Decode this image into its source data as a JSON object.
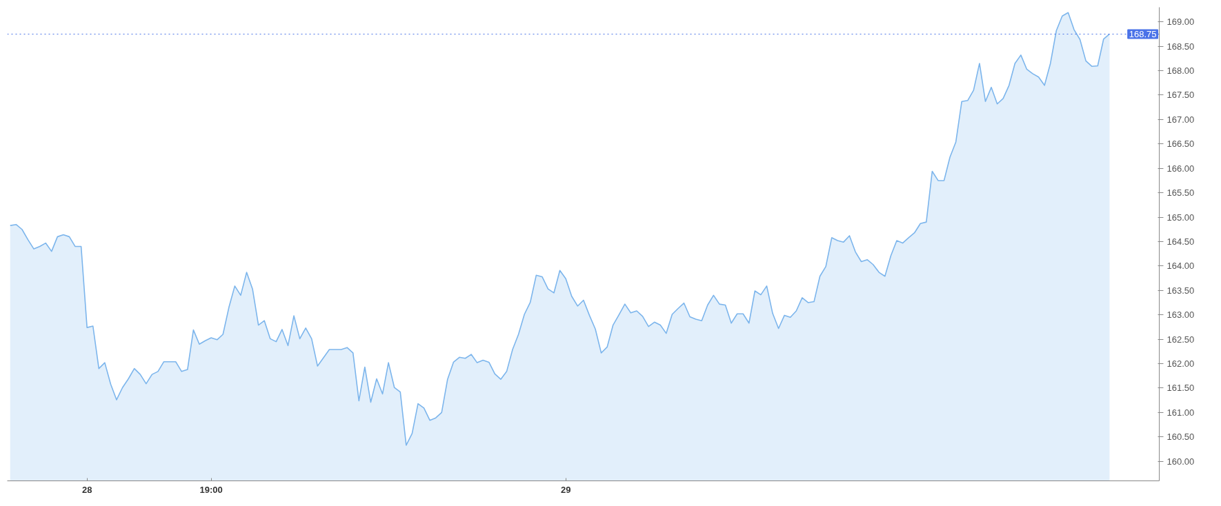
{
  "chart_data": {
    "type": "area",
    "categories": [
      null,
      null,
      null,
      null,
      null,
      null,
      null,
      null,
      null,
      null,
      null,
      null,
      null,
      "28",
      null,
      null,
      null,
      null,
      null,
      null,
      null,
      null,
      null,
      null,
      null,
      null,
      null,
      null,
      null,
      null,
      null,
      null,
      null,
      null,
      "19:00",
      null,
      null,
      null,
      null,
      null,
      null,
      null,
      null,
      null,
      null,
      null,
      null,
      null,
      null,
      null,
      null,
      null,
      null,
      null,
      null,
      null,
      null,
      null,
      null,
      null,
      null,
      null,
      null,
      null,
      null,
      null,
      null,
      null,
      null,
      null,
      null,
      null,
      null,
      null,
      null,
      null,
      null,
      null,
      null,
      null,
      null,
      null,
      null,
      null,
      null,
      null,
      null,
      null,
      null,
      null,
      null,
      null,
      null,
      null,
      "29",
      null,
      null,
      null,
      null,
      null,
      null,
      null,
      null,
      null,
      null,
      null,
      null,
      null,
      null,
      null,
      null,
      null,
      null,
      null,
      null,
      null,
      null,
      null,
      null,
      null,
      null,
      null,
      null,
      null,
      null,
      null,
      null,
      null,
      null,
      null,
      null,
      null,
      null,
      null,
      null,
      null,
      null,
      null,
      null,
      null,
      null,
      null,
      null,
      null,
      null,
      null,
      null,
      null,
      null,
      null,
      null,
      null,
      null,
      null,
      null,
      null,
      null,
      null,
      null,
      null,
      null,
      null,
      null,
      null,
      null,
      null,
      null,
      null,
      null,
      null,
      null,
      null,
      null,
      null,
      null,
      null,
      null,
      null,
      null,
      null,
      null,
      null,
      null,
      null,
      null,
      null,
      null
    ],
    "series": [
      {
        "color": "#7cb5ec",
        "values": [
          164.83,
          164.85,
          164.75,
          164.54,
          164.35,
          164.4,
          164.47,
          164.3,
          164.6,
          164.64,
          164.6,
          164.4,
          164.4,
          162.74,
          162.77,
          161.9,
          162.02,
          161.58,
          161.26,
          161.51,
          161.69,
          161.9,
          161.78,
          161.59,
          161.78,
          161.84,
          162.04,
          162.04,
          162.04,
          161.84,
          161.88,
          162.69,
          162.4,
          162.47,
          162.53,
          162.49,
          162.6,
          163.15,
          163.59,
          163.4,
          163.87,
          163.53,
          162.79,
          162.88,
          162.51,
          162.45,
          162.7,
          162.37,
          162.98,
          162.51,
          162.73,
          162.51,
          161.95,
          162.12,
          162.29,
          162.29,
          162.29,
          162.33,
          162.22,
          161.24,
          161.93,
          161.21,
          161.69,
          161.38,
          162.02,
          161.51,
          161.42,
          160.33,
          160.57,
          161.18,
          161.09,
          160.84,
          160.89,
          161.0,
          161.68,
          162.03,
          162.13,
          162.11,
          162.19,
          162.02,
          162.07,
          162.03,
          161.79,
          161.68,
          161.84,
          162.29,
          162.6,
          163.01,
          163.26,
          163.81,
          163.78,
          163.53,
          163.45,
          163.91,
          163.74,
          163.38,
          163.18,
          163.3,
          162.99,
          162.71,
          162.22,
          162.34,
          162.79,
          163.0,
          163.22,
          163.04,
          163.08,
          162.97,
          162.76,
          162.85,
          162.79,
          162.62,
          163.01,
          163.13,
          163.24,
          162.96,
          162.91,
          162.88,
          163.2,
          163.4,
          163.22,
          163.2,
          162.83,
          163.02,
          163.02,
          162.83,
          163.49,
          163.41,
          163.59,
          163.03,
          162.72,
          162.99,
          162.95,
          163.08,
          163.35,
          163.25,
          163.27,
          163.79,
          163.99,
          164.58,
          164.52,
          164.49,
          164.62,
          164.29,
          164.09,
          164.13,
          164.03,
          163.87,
          163.79,
          164.21,
          164.52,
          164.47,
          164.58,
          164.68,
          164.87,
          164.9,
          165.94,
          165.75,
          165.75,
          166.23,
          166.54,
          167.37,
          167.39,
          167.6,
          168.15,
          167.37,
          167.66,
          167.32,
          167.43,
          167.7,
          168.15,
          168.32,
          168.03,
          167.94,
          167.87,
          167.7,
          168.15,
          168.82,
          169.12,
          169.19,
          168.84,
          168.64,
          168.2,
          168.09,
          168.1,
          168.65,
          168.75
        ]
      }
    ],
    "ylim": [
      159.6,
      169.3
    ],
    "yticks": [
      {
        "value": 160,
        "label": "160.00"
      },
      {
        "value": 160.5,
        "label": "160.50"
      },
      {
        "value": 161,
        "label": "161.00"
      },
      {
        "value": 161.5,
        "label": "161.50"
      },
      {
        "value": 162,
        "label": "162.00"
      },
      {
        "value": 162.5,
        "label": "162.50"
      },
      {
        "value": 163,
        "label": "163.00"
      },
      {
        "value": 163.5,
        "label": "163.50"
      },
      {
        "value": 164,
        "label": "164.00"
      },
      {
        "value": 164.5,
        "label": "164.50"
      },
      {
        "value": 165,
        "label": "165.00"
      },
      {
        "value": 165.5,
        "label": "165.50"
      },
      {
        "value": 166,
        "label": "166.00"
      },
      {
        "value": 166.5,
        "label": "166.50"
      },
      {
        "value": 167,
        "label": "167.00"
      },
      {
        "value": 167.5,
        "label": "167.50"
      },
      {
        "value": 168,
        "label": "168.00"
      },
      {
        "value": 168.5,
        "label": "168.50"
      },
      {
        "value": 169,
        "label": "169.00"
      }
    ],
    "ref_lines": [
      {
        "axis": "y",
        "value": 168.75,
        "label": "168.75",
        "color": "#4a72e8",
        "line_style": "dotted"
      }
    ],
    "grid": false
  }
}
